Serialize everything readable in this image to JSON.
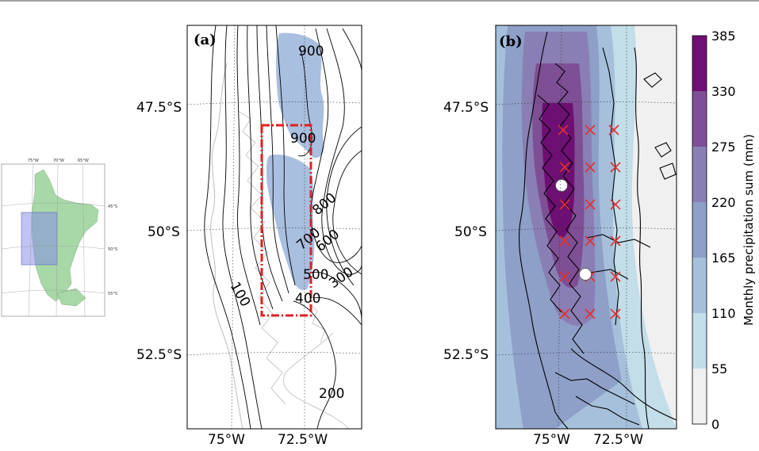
{
  "inset": {
    "lon_labels": [
      "75°W",
      "70°W",
      "65°W"
    ],
    "lat_labels": [
      "45°S",
      "50°S",
      "55°S"
    ]
  },
  "panel_a": {
    "label": "(a)",
    "lat_labels": [
      "47.5°S",
      "50°S",
      "52.5°S"
    ],
    "lon_labels": [
      "75°W",
      "72.5°W"
    ],
    "contour_labels": [
      "900",
      "900",
      "800",
      "600",
      "700",
      "500",
      "400",
      "300",
      "100",
      "200"
    ],
    "colors": {
      "icefield": "#a9bfe0",
      "contour": "#000000",
      "box": "#e02020",
      "coast": "#c8c8c8"
    }
  },
  "panel_b": {
    "label": "(b)",
    "lat_labels": [
      "47.5°S",
      "50°S",
      "52.5°S"
    ],
    "lon_labels": [
      "75°W",
      "72.5°W"
    ],
    "colors": {
      "station": "#ffffff",
      "grid_point": "#e03030"
    }
  },
  "colorbar": {
    "title": "Monthly precipitation sum (mm)",
    "ticks": [
      "385",
      "330",
      "275",
      "220",
      "165",
      "110",
      "55",
      "0"
    ],
    "colors": [
      "#6e0f73",
      "#7e4f95",
      "#8a7fb4",
      "#8e9fc8",
      "#a6c0db",
      "#c3dde9",
      "#f0f0f0"
    ]
  }
}
